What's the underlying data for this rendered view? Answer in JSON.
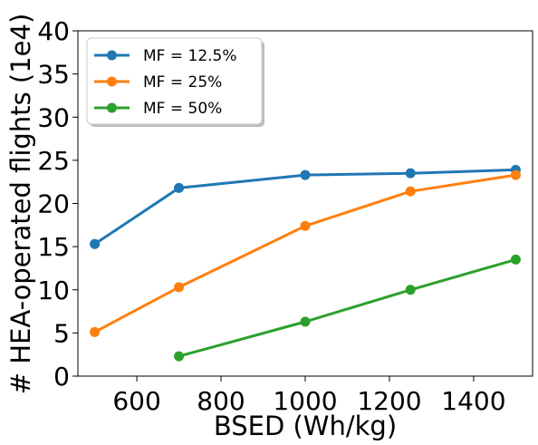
{
  "chart_data": {
    "type": "line",
    "title": "",
    "xlabel": "BSED (Wh/kg)",
    "ylabel": "# HEA-operated flights (1e4)",
    "xlim": [
      460,
      1540
    ],
    "ylim": [
      0,
      40
    ],
    "xticks": [
      600,
      800,
      1000,
      1200,
      1400
    ],
    "yticks": [
      0,
      5,
      10,
      15,
      20,
      25,
      30,
      35,
      40
    ],
    "grid": false,
    "legend_position": "top-left",
    "series": [
      {
        "name": "MF = 12.5%",
        "color": "#1f77b4",
        "x": [
          500,
          700,
          1000,
          1250,
          1500
        ],
        "y": [
          15.3,
          21.8,
          23.3,
          23.5,
          23.9
        ]
      },
      {
        "name": "MF = 25%",
        "color": "#ff7f0e",
        "x": [
          500,
          700,
          1000,
          1250,
          1500
        ],
        "y": [
          5.1,
          10.3,
          17.4,
          21.4,
          23.3
        ]
      },
      {
        "name": "MF = 50%",
        "color": "#2ca02c",
        "x": [
          700,
          1000,
          1250,
          1500
        ],
        "y": [
          2.3,
          6.3,
          10.0,
          13.5
        ]
      }
    ]
  }
}
